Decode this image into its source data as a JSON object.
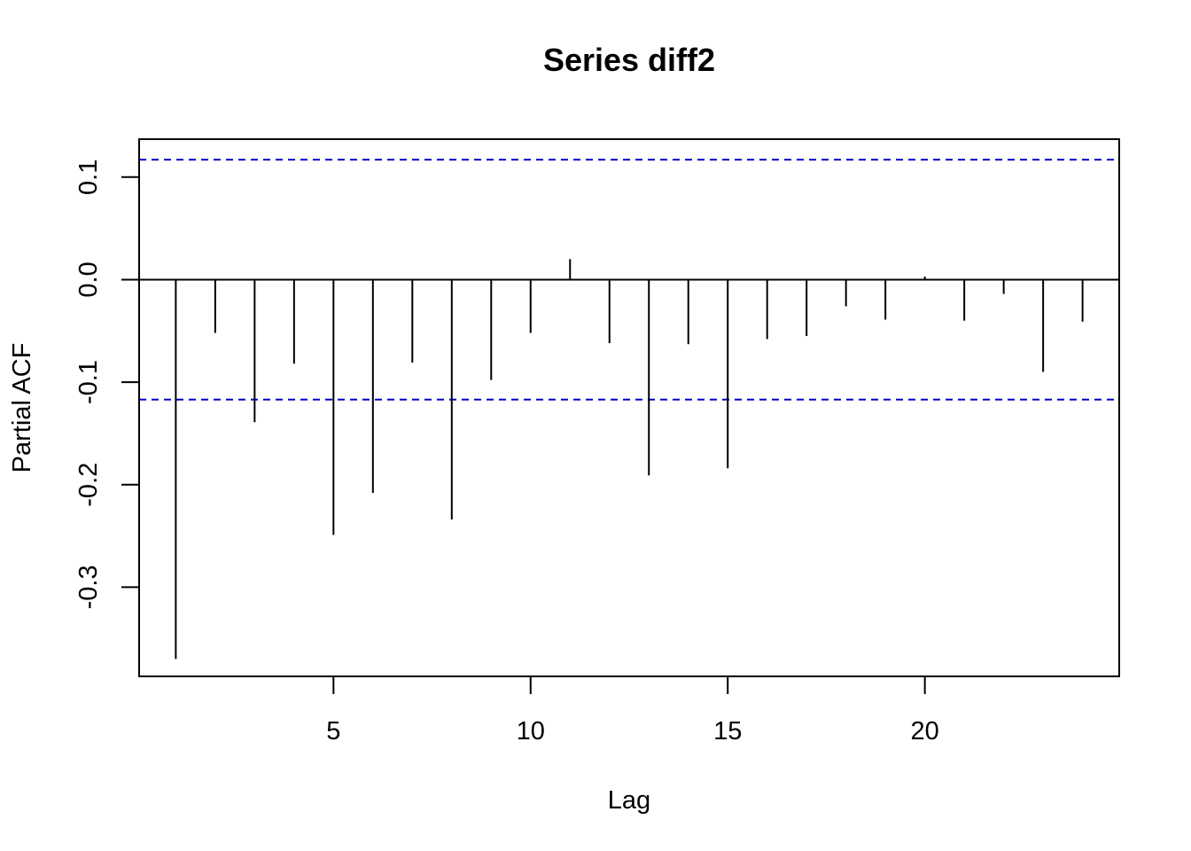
{
  "chart_data": {
    "type": "bar",
    "title": "Series  diff2",
    "xlabel": "Lag",
    "ylabel": "Partial ACF",
    "x": [
      1,
      2,
      3,
      4,
      5,
      6,
      7,
      8,
      9,
      10,
      11,
      12,
      13,
      14,
      15,
      16,
      17,
      18,
      19,
      20,
      21,
      22,
      23,
      24
    ],
    "values": [
      -0.37,
      -0.052,
      -0.139,
      -0.082,
      -0.249,
      -0.208,
      -0.081,
      -0.234,
      -0.098,
      -0.052,
      0.02,
      -0.062,
      -0.191,
      -0.063,
      -0.184,
      -0.058,
      -0.055,
      -0.026,
      -0.039,
      0.003,
      -0.04,
      -0.014,
      -0.09,
      -0.041
    ],
    "confidence_bound": 0.117,
    "xlim": [
      0.07,
      24.93
    ],
    "ylim": [
      -0.387,
      0.137
    ],
    "xticks": [
      5,
      10,
      15,
      20
    ],
    "yticks": [
      -0.3,
      -0.2,
      -0.1,
      0.0,
      0.1
    ],
    "xtick_labels": [
      "5",
      "10",
      "15",
      "20"
    ],
    "ytick_labels": [
      "-0.3",
      "-0.2",
      "-0.1",
      "0.0",
      "0.1"
    ],
    "colors": {
      "spike": "#000000",
      "bound": "#0000cc",
      "zero_line": "#000000"
    }
  }
}
